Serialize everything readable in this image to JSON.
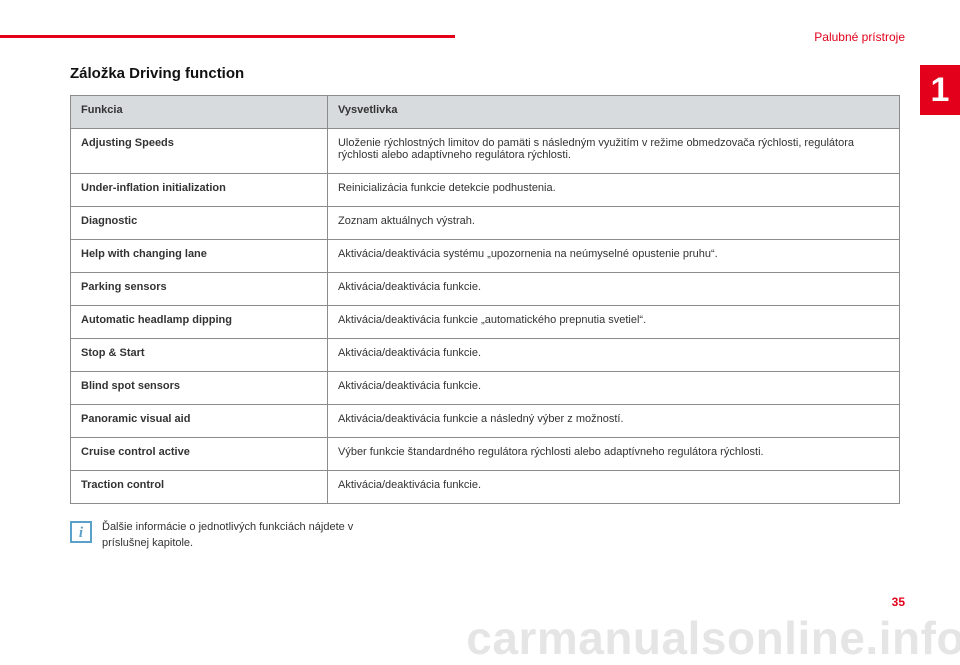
{
  "header": {
    "section_label": "Palubné prístroje",
    "chapter_number": "1",
    "accent_color": "#e2001a"
  },
  "title": "Záložka Driving function",
  "table": {
    "columns": [
      "Funkcia",
      "Vysvetlivka"
    ],
    "col_widths_pct": [
      31,
      69
    ],
    "header_bg": "#d7dbdd",
    "border_color": "#8b8b8b",
    "font_size_pt": 8,
    "rows": [
      [
        "Adjusting Speeds",
        "Uloženie rýchlostných limitov do pamäti s následným využitím v režime obmedzovača rýchlosti, regulátora rýchlosti alebo adaptívneho regulátora rýchlosti."
      ],
      [
        "Under-inflation initialization",
        "Reinicializácia funkcie detekcie podhustenia."
      ],
      [
        "Diagnostic",
        "Zoznam aktuálnych výstrah."
      ],
      [
        "Help with changing lane",
        "Aktivácia/deaktivácia systému „upozornenia na neúmyselné opustenie pruhu“."
      ],
      [
        "Parking sensors",
        "Aktivácia/deaktivácia funkcie."
      ],
      [
        "Automatic headlamp dipping",
        "Aktivácia/deaktivácia funkcie „automatického prepnutia svetiel“."
      ],
      [
        "Stop & Start",
        "Aktivácia/deaktivácia funkcie."
      ],
      [
        "Blind spot sensors",
        "Aktivácia/deaktivácia funkcie."
      ],
      [
        "Panoramic visual aid",
        "Aktivácia/deaktivácia funkcie a následný výber z možností."
      ],
      [
        "Cruise control active",
        "Výber funkcie štandardného regulátora rýchlosti alebo adaptívneho regulátora rýchlosti."
      ],
      [
        "Traction control",
        "Aktivácia/deaktivácia funkcie."
      ]
    ]
  },
  "note": {
    "icon_glyph": "i",
    "icon_border_color": "#5aa0c8",
    "icon_text_color": "#5aa0c8",
    "text": "Ďalšie informácie o jednotlivých funkciách nájdete v príslušnej kapitole."
  },
  "page_number": "35",
  "watermark": "carmanualsonline.info",
  "colors": {
    "background": "#ffffff",
    "text": "#333333",
    "title": "#111111",
    "watermark": "rgba(0,0,0,0.10)"
  }
}
